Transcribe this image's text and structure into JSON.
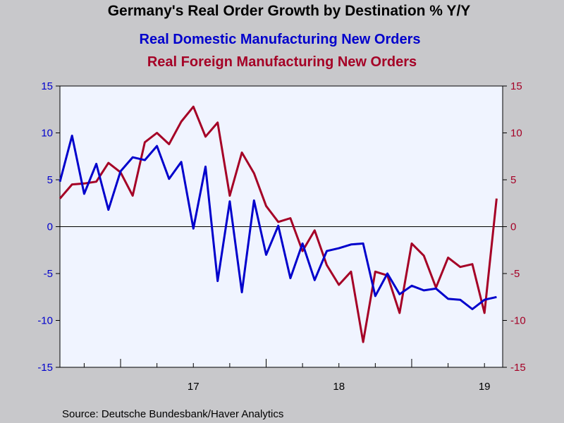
{
  "chart_data": {
    "type": "line",
    "title": "Germany's Real Order Growth by Destination % Y/Y",
    "subtitle_1": "Real Domestic Manufacturing New Orders",
    "subtitle_2": "Real Foreign Manufacturing New Orders",
    "source": "Source:  Deutsche Bundesbank/Haver Analytics",
    "ylim": [
      -15,
      15
    ],
    "y_ticks": [
      15,
      10,
      5,
      0,
      -5,
      -10,
      -15
    ],
    "y_tick_labels": [
      "15",
      "10",
      "5",
      "0",
      "-5",
      "-10",
      "-15"
    ],
    "x_tick_labels": [
      "17",
      "18",
      "19"
    ],
    "grid": false,
    "colors": {
      "domestic": "#0000cc",
      "foreign": "#a50026",
      "plot_bg": "#f0f4ff",
      "page_bg": "#c8c8cb"
    },
    "x": [
      "2016-08",
      "2016-09",
      "2016-10",
      "2016-11",
      "2016-12",
      "2017-01",
      "2017-02",
      "2017-03",
      "2017-04",
      "2017-05",
      "2017-06",
      "2017-07",
      "2017-08",
      "2017-09",
      "2017-10",
      "2017-11",
      "2017-12",
      "2018-01",
      "2018-02",
      "2018-03",
      "2018-04",
      "2018-05",
      "2018-06",
      "2018-07",
      "2018-08",
      "2018-09",
      "2018-10",
      "2018-11",
      "2018-12",
      "2019-01",
      "2019-02",
      "2019-03",
      "2019-04",
      "2019-05",
      "2019-06",
      "2019-07",
      "2019-08"
    ],
    "series": [
      {
        "name": "Real Domestic Manufacturing New Orders",
        "axis": "left",
        "values": [
          4.8,
          9.7,
          3.5,
          6.7,
          1.8,
          5.9,
          7.4,
          7.1,
          8.6,
          5.1,
          6.9,
          -0.2,
          6.4,
          -5.8,
          2.7,
          -7.0,
          2.8,
          -3.0,
          0.1,
          -5.5,
          -1.8,
          -5.7,
          -2.6,
          -2.3,
          -1.9,
          -1.8,
          -7.4,
          -5.0,
          -7.2,
          -6.3,
          -6.8,
          -6.6,
          -7.7,
          -7.8,
          -8.8,
          -7.8,
          -7.5
        ]
      },
      {
        "name": "Real Foreign Manufacturing New Orders",
        "axis": "right",
        "values": [
          3.0,
          4.5,
          4.6,
          4.8,
          6.8,
          5.8,
          3.3,
          9.0,
          10.0,
          8.8,
          11.2,
          12.8,
          9.6,
          11.1,
          3.3,
          7.9,
          5.7,
          2.2,
          0.5,
          0.9,
          -2.6,
          -0.4,
          -4.1,
          -6.2,
          -4.8,
          -12.3,
          -4.8,
          -5.2,
          -9.2,
          -1.8,
          -3.1,
          -6.5,
          -3.3,
          -4.3,
          -4.0,
          -9.2,
          3.0
        ]
      }
    ]
  }
}
